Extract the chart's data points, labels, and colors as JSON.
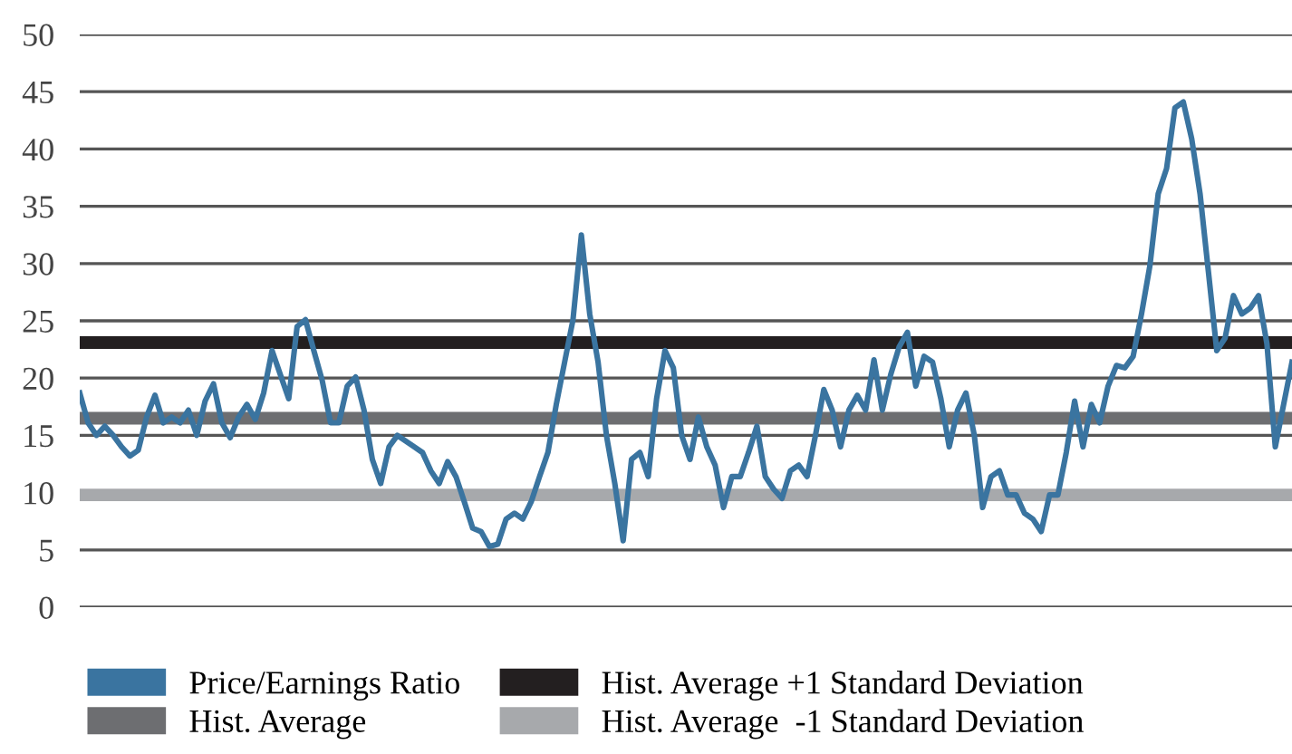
{
  "chart_data": {
    "type": "line",
    "categories": [
      null,
      null,
      null,
      null,
      null,
      null,
      null,
      null,
      null,
      null,
      null,
      null,
      null,
      null,
      null,
      null,
      null,
      null,
      null,
      null,
      null,
      null,
      null,
      null,
      null,
      null,
      null,
      null,
      null,
      null,
      null,
      null,
      null,
      null,
      null,
      null,
      null,
      null,
      null,
      null,
      null,
      null,
      null,
      null,
      null,
      null,
      null,
      null,
      null,
      null,
      null,
      null,
      null,
      null,
      null,
      null,
      null,
      null,
      null,
      null,
      null,
      null,
      null,
      null,
      null,
      null,
      null,
      null,
      null,
      null,
      null,
      null,
      null,
      null,
      null,
      null,
      null,
      null,
      null,
      null,
      null,
      null,
      null,
      null,
      null,
      null,
      null,
      null,
      null,
      null,
      null,
      null,
      null,
      null,
      null,
      null,
      null,
      null,
      null,
      null,
      null,
      null,
      null,
      null,
      null,
      null,
      null,
      null,
      null,
      null,
      null,
      null,
      null,
      null,
      null,
      null,
      null,
      null,
      null,
      null,
      null,
      null,
      null,
      null,
      null,
      null,
      null,
      null,
      null,
      null,
      null,
      null,
      null,
      null,
      null,
      null,
      null,
      null,
      null,
      null,
      null,
      null,
      null,
      null,
      null,
      null
    ],
    "series": [
      {
        "name": "Price/Earnings Ratio",
        "color": "#3a74a0",
        "values": [
          18.7,
          16.1,
          15.0,
          15.8,
          15.0,
          14.0,
          13.2,
          13.7,
          16.6,
          18.5,
          16.1,
          16.6,
          16.1,
          17.2,
          15.0,
          18.0,
          19.5,
          16.1,
          14.8,
          16.6,
          17.7,
          16.4,
          18.7,
          22.4,
          20.3,
          18.2,
          24.5,
          25.1,
          22.4,
          19.8,
          16.1,
          16.1,
          19.3,
          20.1,
          17.2,
          12.9,
          10.8,
          14.0,
          15.0,
          14.5,
          14.0,
          13.5,
          11.9,
          10.8,
          12.7,
          11.4,
          9.2,
          6.9,
          6.6,
          5.3,
          5.5,
          7.7,
          8.2,
          7.7,
          9.2,
          11.4,
          13.5,
          17.7,
          21.4,
          25.1,
          32.5,
          25.6,
          21.4,
          15.0,
          10.8,
          5.8,
          12.9,
          13.5,
          11.4,
          18.2,
          22.4,
          20.9,
          15.0,
          12.9,
          16.6,
          14.0,
          12.4,
          8.7,
          11.4,
          11.4,
          13.5,
          15.8,
          11.4,
          10.3,
          9.5,
          11.9,
          12.4,
          11.4,
          15.0,
          19.0,
          17.2,
          14.0,
          17.2,
          18.5,
          17.2,
          21.6,
          17.2,
          20.3,
          22.7,
          24.0,
          19.3,
          21.9,
          21.4,
          18.2,
          14.0,
          17.2,
          18.7,
          15.0,
          8.7,
          11.4,
          11.9,
          9.8,
          9.8,
          8.2,
          7.7,
          6.6,
          9.8,
          9.8,
          13.5,
          18.0,
          14.0,
          17.7,
          16.1,
          19.3,
          21.1,
          20.9,
          21.9,
          25.6,
          29.8,
          36.1,
          38.3,
          43.6,
          44.1,
          40.9,
          36.1,
          29.3,
          22.4,
          23.5,
          27.2,
          25.6,
          26.1,
          27.2,
          23.0,
          14.0,
          17.7,
          21.4
        ]
      }
    ],
    "ylim": [
      0,
      50
    ],
    "yticks": [
      0,
      5,
      10,
      15,
      20,
      25,
      30,
      35,
      40,
      45,
      50
    ],
    "grid": "y",
    "legend": "bottom",
    "marker": "none",
    "line_style": "solid",
    "tick_labels": "y",
    "ref_lines": [
      {
        "axis": "y",
        "value": 23.1,
        "label": "Hist. Average +1 Standard Deviation",
        "color": "#231f20"
      },
      {
        "axis": "y",
        "value": 16.5,
        "label": "Hist. Average",
        "color": "#6d6e71"
      },
      {
        "axis": "y",
        "value": 9.8,
        "label": "Hist. Average  -1 Standard Deviation",
        "color": "#a7a9ac"
      }
    ]
  }
}
